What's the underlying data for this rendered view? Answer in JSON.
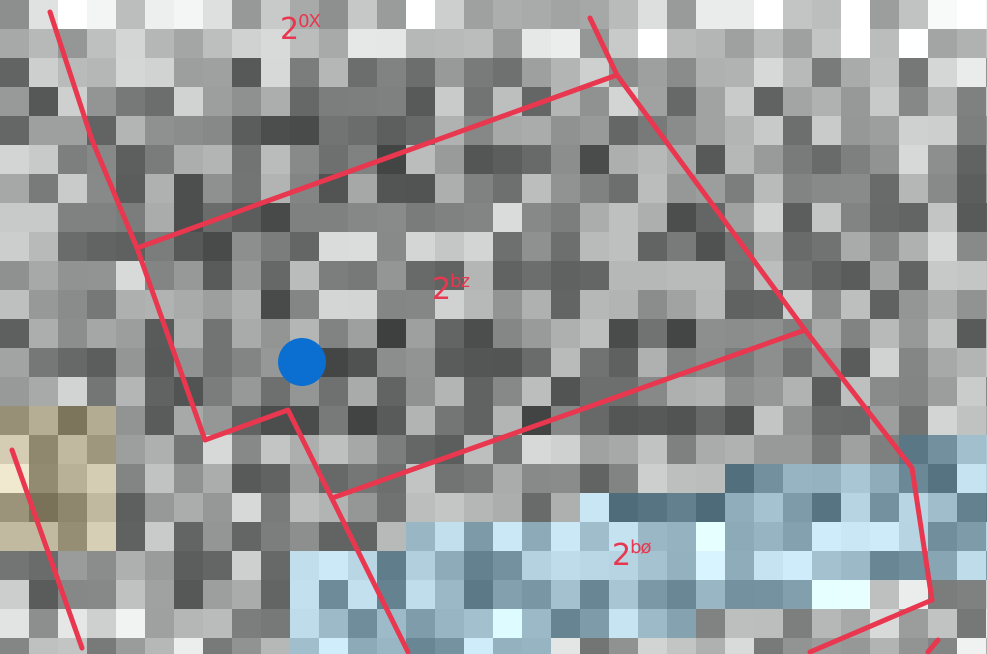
{
  "map": {
    "base_layer": "pixelated-aerial-imagery",
    "boundary_color": "#e8374f",
    "parcels": [
      {
        "id": "parcel-20x",
        "label_main": "2",
        "label_sup": "0X"
      },
      {
        "id": "parcel-2bz",
        "label_main": "2",
        "label_sup": "bz"
      },
      {
        "id": "parcel-2b0",
        "label_main": "2",
        "label_sup": "bø"
      }
    ],
    "marker": {
      "icon": "location-dot-icon",
      "color": "#0a6fd1"
    }
  }
}
